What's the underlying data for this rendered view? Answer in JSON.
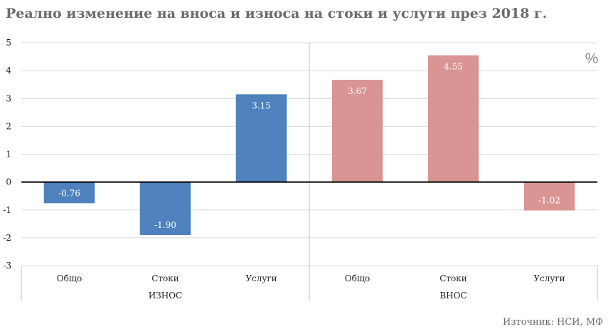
{
  "title": "Реално изменение на вноса и износа на стоки и услуги през 2018 г.",
  "source": "Източник: НСИ, МФ",
  "chart_data": {
    "type": "bar",
    "unit": "%",
    "ylim": [
      -3,
      5
    ],
    "yticks": [
      5,
      4,
      3,
      2,
      1,
      0,
      -1,
      -2,
      -3
    ],
    "grid": true,
    "groups": [
      {
        "name": "ИЗНОС",
        "color": "#4e81bd",
        "categories": [
          "Общо",
          "Стоки",
          "Услуги"
        ],
        "values": [
          -0.76,
          -1.9,
          3.15
        ],
        "labels": [
          "-0.76",
          "-1.90",
          "3.15"
        ]
      },
      {
        "name": "ВНОС",
        "color": "#d99594",
        "categories": [
          "Общо",
          "Стоки",
          "Услуги"
        ],
        "values": [
          3.67,
          4.55,
          -1.02
        ],
        "labels": [
          "3.67",
          "4.55",
          "-1.02"
        ]
      }
    ]
  }
}
